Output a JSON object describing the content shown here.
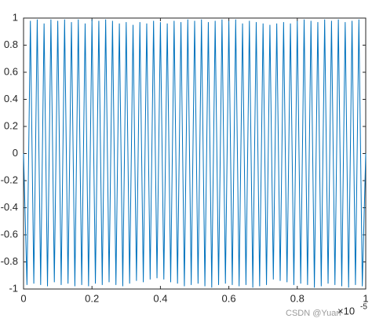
{
  "chart_data": {
    "type": "line",
    "x_multiplier": "×10",
    "x_exponent": "-5",
    "watermark": "CSDN @Yuan",
    "xlim": [
      0,
      1
    ],
    "ylim": [
      -1,
      1
    ],
    "xticks": [
      0,
      0.2,
      0.4,
      0.6,
      0.8,
      1
    ],
    "yticks": [
      -1,
      -0.8,
      -0.6,
      -0.4,
      -0.2,
      0,
      0.2,
      0.4,
      0.6,
      0.8,
      1
    ],
    "x": [
      0,
      0.01,
      0.02,
      0.03,
      0.04,
      0.05,
      0.06,
      0.07,
      0.08,
      0.09,
      0.1,
      0.11,
      0.12,
      0.13,
      0.14,
      0.15,
      0.16,
      0.17,
      0.18,
      0.19,
      0.2,
      0.21,
      0.22,
      0.23,
      0.24,
      0.25,
      0.26,
      0.27,
      0.28,
      0.29,
      0.3,
      0.31,
      0.32,
      0.33,
      0.34,
      0.35,
      0.36,
      0.37,
      0.38,
      0.39,
      0.4,
      0.41,
      0.42,
      0.43,
      0.44,
      0.45,
      0.46,
      0.47,
      0.48,
      0.49,
      0.5,
      0.51,
      0.52,
      0.53,
      0.54,
      0.55,
      0.56,
      0.57,
      0.58,
      0.59,
      0.6,
      0.61,
      0.62,
      0.63,
      0.64,
      0.65,
      0.66,
      0.67,
      0.68,
      0.69,
      0.7,
      0.71,
      0.72,
      0.73,
      0.74,
      0.75,
      0.76,
      0.77,
      0.78,
      0.79,
      0.8,
      0.81,
      0.82,
      0.83,
      0.84,
      0.85,
      0.86,
      0.87,
      0.88,
      0.89,
      0.9,
      0.91,
      0.92,
      0.93,
      0.94,
      0.95,
      0.96,
      0.97,
      0.98,
      0.99,
      1
    ],
    "series": [
      {
        "color": "#0072bd",
        "values": [
          0,
          -0.97,
          0.98,
          -0.96,
          0.99,
          -0.97,
          0.96,
          -0.98,
          0.99,
          -0.95,
          0.98,
          -0.97,
          0.99,
          -0.96,
          0.97,
          -0.98,
          0.99,
          -0.97,
          0.96,
          -0.98,
          0.99,
          -0.96,
          0.98,
          -0.97,
          0.99,
          -0.95,
          0.98,
          -0.97,
          0.96,
          -0.98,
          0.97,
          -0.96,
          0.95,
          -0.94,
          0.97,
          -0.95,
          0.96,
          -0.93,
          0.98,
          -0.92,
          0.97,
          -0.93,
          0.96,
          -0.95,
          0.98,
          -0.96,
          0.97,
          -0.98,
          0.99,
          -0.97,
          0.98,
          -0.96,
          0.99,
          -0.98,
          0.97,
          -0.99,
          0.98,
          -0.97,
          0.99,
          -0.96,
          0.98,
          -0.97,
          0.99,
          -0.98,
          0.96,
          -0.97,
          0.98,
          -0.99,
          0.97,
          -0.98,
          0.96,
          -0.97,
          0.95,
          -0.93,
          0.96,
          -0.94,
          0.97,
          -0.95,
          0.96,
          -0.97,
          0.98,
          -0.96,
          0.99,
          -0.97,
          0.98,
          -0.99,
          0.97,
          -0.98,
          0.99,
          -0.96,
          0.98,
          -0.97,
          0.99,
          -0.98,
          0.97,
          -0.99,
          0.98,
          -0.97,
          0.99,
          -0.98,
          0
        ]
      }
    ]
  }
}
